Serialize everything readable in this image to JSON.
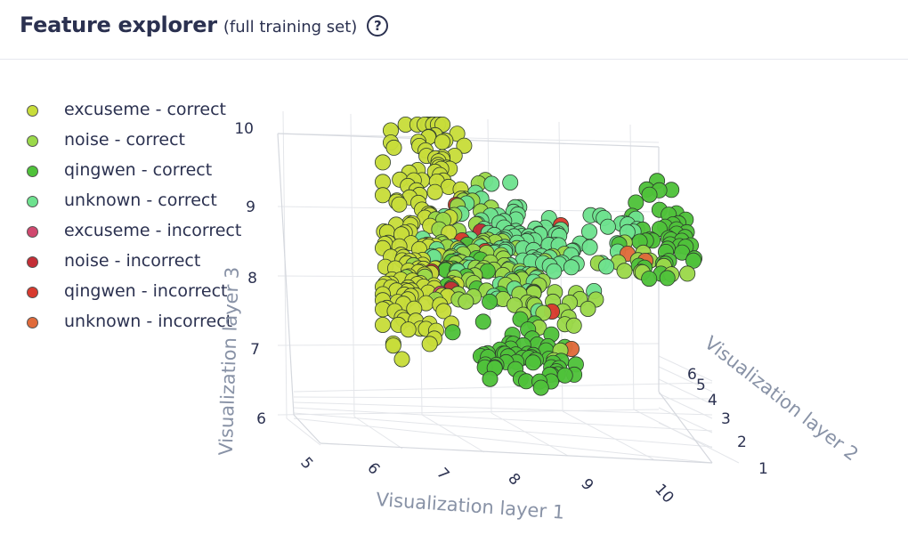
{
  "header": {
    "title": "Feature explorer",
    "subtitle": "(full training set)",
    "help_glyph": "?"
  },
  "chart_data": {
    "type": "scatter",
    "x_axis": {
      "title": "Visualization layer 1",
      "ticks": [
        "5",
        "6",
        "7",
        "8",
        "9",
        "10"
      ]
    },
    "y_axis": {
      "title": "Visualization layer 2",
      "ticks": [
        "1",
        "2",
        "3",
        "4",
        "5",
        "6"
      ]
    },
    "z_axis": {
      "title": "Visualization layer 3",
      "ticks": [
        "6",
        "7",
        "8",
        "9",
        "10"
      ]
    },
    "grid": true,
    "legend_placement": "left",
    "series": [
      {
        "name": "excuseme - correct",
        "color": "#c8dd3a"
      },
      {
        "name": "noise - correct",
        "color": "#9bd94a"
      },
      {
        "name": "qingwen - correct",
        "color": "#4fc23a"
      },
      {
        "name": "unknown - correct",
        "color": "#6ee28f"
      },
      {
        "name": "excuseme - incorrect",
        "color": "#d0486e"
      },
      {
        "name": "noise - incorrect",
        "color": "#c42e36"
      },
      {
        "name": "qingwen - incorrect",
        "color": "#d83a2e"
      },
      {
        "name": "unknown - incorrect",
        "color": "#e06a3a"
      }
    ]
  }
}
